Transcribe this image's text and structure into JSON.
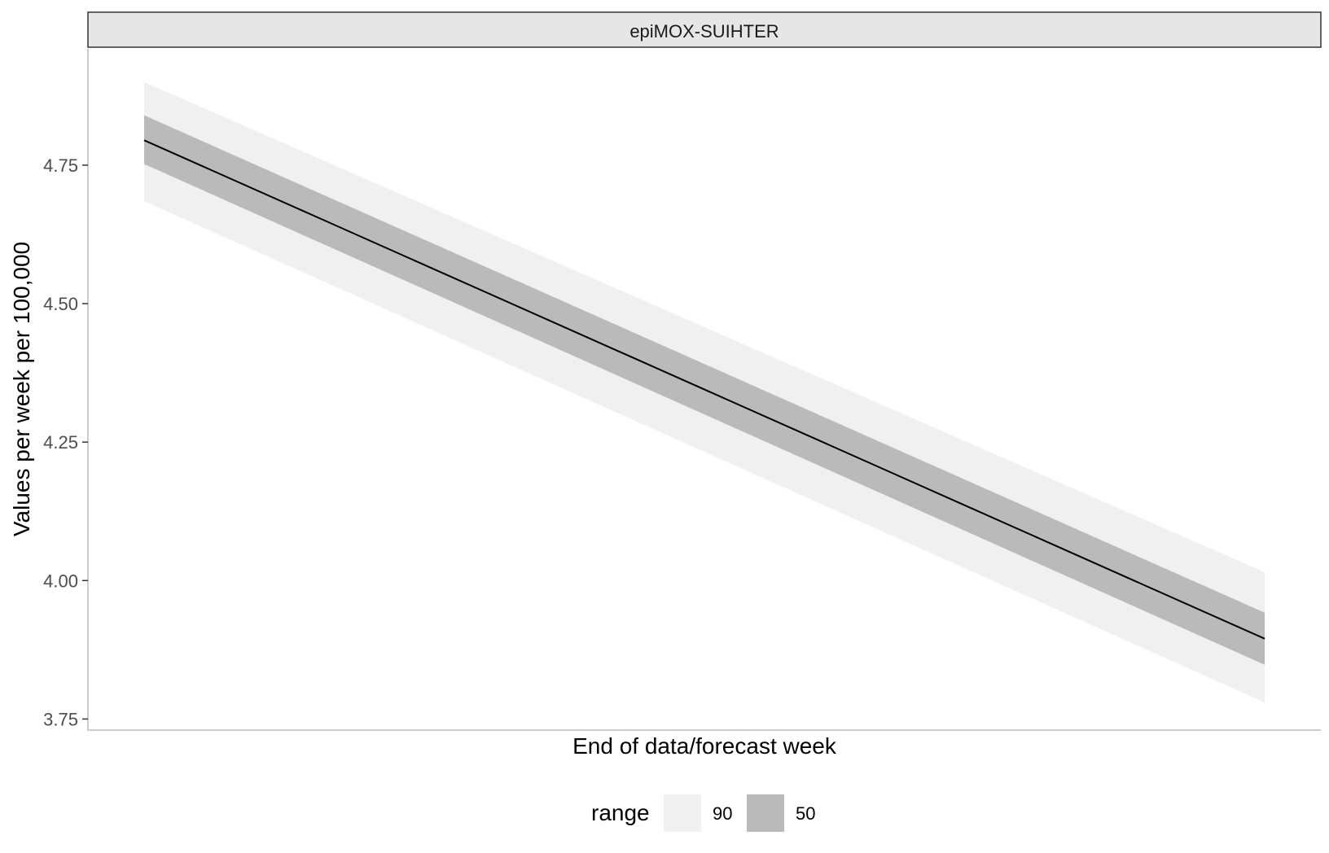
{
  "chart_data": {
    "type": "line",
    "facet_title": "epiMOX-SUIHTER",
    "xlabel": "End of data/forecast week",
    "ylabel": "Values per week per 100,000",
    "x": [
      "start",
      "end"
    ],
    "median": [
      4.795,
      3.895
    ],
    "intervals": [
      {
        "range": "90",
        "lower": [
          4.685,
          3.78
        ],
        "upper": [
          4.9,
          4.015
        ],
        "color": "#f0f0f0"
      },
      {
        "range": "50",
        "lower": [
          4.752,
          3.848
        ],
        "upper": [
          4.84,
          3.942
        ],
        "color": "#bababa"
      }
    ],
    "ylim": [
      3.73,
      4.96
    ],
    "yticks": [
      3.75,
      4.0,
      4.25,
      4.5,
      4.75
    ],
    "ytick_labels": [
      "3.75",
      "4.00",
      "4.25",
      "4.50",
      "4.75"
    ],
    "line_color": "#000000",
    "legend": {
      "title": "range",
      "placement": "bottom",
      "items": [
        {
          "label": "90",
          "color": "#f0f0f0"
        },
        {
          "label": "50",
          "color": "#bababa"
        }
      ]
    },
    "grid": false
  }
}
